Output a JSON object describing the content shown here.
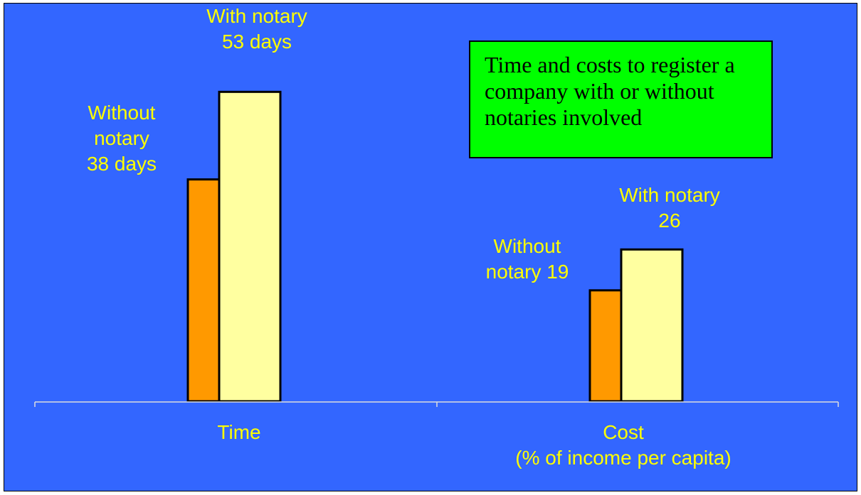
{
  "chart_data": {
    "type": "bar",
    "title": "Time and costs to register a company with or without notaries involved",
    "categories": [
      "Time",
      "Cost\n(% of income per capita)"
    ],
    "series": [
      {
        "name": "Without notary",
        "values": [
          38,
          19
        ]
      },
      {
        "name": "With notary",
        "values": [
          53,
          26
        ]
      }
    ],
    "data_labels": [
      [
        "Without\nnotary\n38 days",
        "With notary\n53 days"
      ],
      [
        "Without\nnotary 19",
        "With notary\n26"
      ]
    ],
    "grid": false,
    "legend": "none"
  },
  "colors": {
    "background": "#3366ff",
    "without_notary": "#ff9900",
    "with_notary": "#ffffa0",
    "text": "#ffff00",
    "title_box": "#00ff00"
  }
}
